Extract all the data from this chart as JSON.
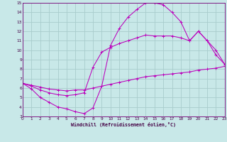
{
  "xlabel": "Windchill (Refroidissement éolien,°C)",
  "bg_color": "#c8e8e8",
  "grid_color": "#a8cccc",
  "line_color": "#bb00bb",
  "xlim": [
    0,
    23
  ],
  "ylim": [
    3,
    15
  ],
  "xticks": [
    0,
    1,
    2,
    3,
    4,
    5,
    6,
    7,
    8,
    9,
    10,
    11,
    12,
    13,
    14,
    15,
    16,
    17,
    18,
    19,
    20,
    21,
    22,
    23
  ],
  "yticks": [
    3,
    4,
    5,
    6,
    7,
    8,
    9,
    10,
    11,
    12,
    13,
    14,
    15
  ],
  "series1": [
    6.5,
    5.9,
    5.0,
    4.5,
    4.0,
    3.8,
    3.5,
    3.3,
    3.9,
    6.2,
    10.5,
    12.3,
    13.5,
    14.3,
    15.0,
    15.0,
    14.8,
    14.0,
    13.0,
    11.0,
    12.0,
    11.0,
    10.0,
    8.5
  ],
  "series2": [
    6.5,
    6.2,
    5.8,
    5.5,
    5.3,
    5.2,
    5.3,
    5.5,
    8.2,
    9.8,
    10.3,
    10.7,
    11.0,
    11.3,
    11.6,
    11.5,
    11.5,
    11.5,
    11.3,
    11.0,
    12.0,
    11.0,
    9.5,
    8.5
  ],
  "series3": [
    6.5,
    6.3,
    6.1,
    5.9,
    5.8,
    5.7,
    5.8,
    5.8,
    6.0,
    6.2,
    6.4,
    6.6,
    6.8,
    7.0,
    7.2,
    7.3,
    7.4,
    7.5,
    7.6,
    7.7,
    7.9,
    8.0,
    8.1,
    8.3
  ]
}
